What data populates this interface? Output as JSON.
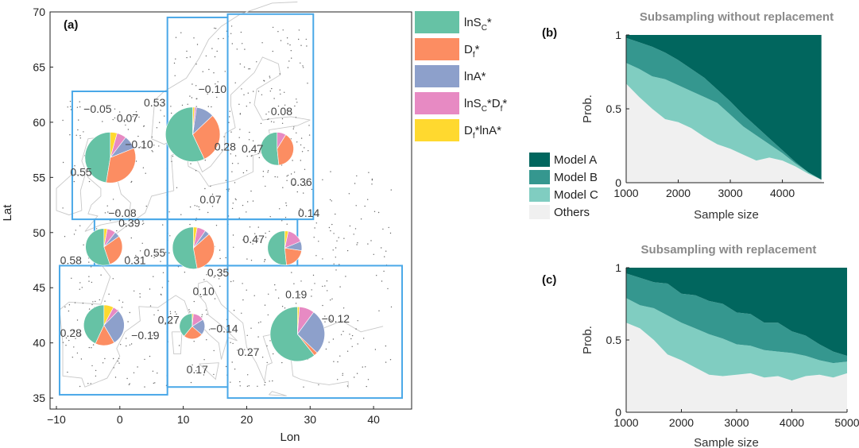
{
  "colors": {
    "lnSc": "#66c2a5",
    "Df": "#fc8d62",
    "lnA": "#8da0cb",
    "lnScDf": "#e78ac3",
    "DflnA": "#ffd92f",
    "modelA": "#01665e",
    "modelB": "#35978f",
    "modelC": "#80cdc1",
    "others": "#f0f0f0",
    "box": "#4aa8e8"
  },
  "chart_data": [
    {
      "type": "pie",
      "panel": "(a)",
      "xlabel": "Lon",
      "ylabel": "Lat",
      "xlim": [
        -11,
        46
      ],
      "ylim": [
        34,
        70
      ],
      "xticks": [
        "−10",
        "0",
        "10",
        "20",
        "30",
        "40"
      ],
      "yticks": [
        "35",
        "40",
        "45",
        "50",
        "55",
        "60",
        "65",
        "70"
      ],
      "legend": {
        "placement": "top-right",
        "entries": [
          {
            "key": "lnSc",
            "label": "lnS",
            "sub": "C",
            "rest": "*"
          },
          {
            "key": "Df",
            "label": "D",
            "sub": "f",
            "rest": "*"
          },
          {
            "key": "lnA",
            "label": "lnA*",
            "sub": "",
            "rest": ""
          },
          {
            "key": "lnScDf",
            "label": "lnS",
            "sub": "C",
            "rest": "*D",
            "sub2": "f",
            "rest2": "*"
          },
          {
            "key": "DflnA",
            "label": "D",
            "sub": "f",
            "rest": "*lnA*"
          }
        ]
      },
      "regions": [
        {
          "id": "west-north",
          "lon": [
            -7.5,
            7.5
          ],
          "lat": [
            51.2,
            62.8
          ]
        },
        {
          "id": "scandinavia",
          "lon": [
            7.5,
            17
          ],
          "lat": [
            51.2,
            69.5
          ]
        },
        {
          "id": "baltic",
          "lon": [
            17,
            30.5
          ],
          "lat": [
            51.2,
            69.8
          ]
        },
        {
          "id": "west-central",
          "lon": [
            -4,
            7.5
          ],
          "lat": [
            47,
            51.2
          ]
        },
        {
          "id": "central",
          "lon": [
            7.5,
            17
          ],
          "lat": [
            47,
            51.2
          ]
        },
        {
          "id": "east-central",
          "lon": [
            17,
            28
          ],
          "lat": [
            47,
            51.2
          ]
        },
        {
          "id": "iberia",
          "lon": [
            -9.5,
            7.5
          ],
          "lat": [
            35.3,
            47
          ]
        },
        {
          "id": "italy",
          "lon": [
            7.5,
            17
          ],
          "lat": [
            36,
            47
          ]
        },
        {
          "id": "southeast",
          "lon": [
            17,
            44.5
          ],
          "lat": [
            35,
            47
          ]
        }
      ],
      "pies": [
        {
          "id": "west-north",
          "lon": -1.5,
          "lat": 56.8,
          "r": 4.0,
          "slices": [
            [
              "lnSc",
              0.55
            ],
            [
              "Df",
              0.39
            ],
            [
              "lnA",
              0.1
            ],
            [
              "lnScDf",
              0.07
            ],
            [
              "DflnA",
              0.05
            ]
          ],
          "labels": [
            [
              "0.55",
              -4.4,
              55.5,
              "end"
            ],
            [
              "0.39",
              1.5,
              50.9,
              "middle"
            ],
            [
              "−0.10",
              0.8,
              58.0,
              "start"
            ],
            [
              "0.07",
              -0.5,
              60.4,
              "start"
            ],
            [
              "−0.05",
              -3.5,
              61.2,
              "middle"
            ]
          ]
        },
        {
          "id": "scandinavia",
          "lon": 11.5,
          "lat": 58.9,
          "r": 4.3,
          "slices": [
            [
              "lnSc",
              0.53
            ],
            [
              "Df",
              0.28
            ],
            [
              "lnA",
              0.1
            ],
            [
              "lnScDf",
              0.01
            ],
            [
              "DflnA",
              0.01
            ]
          ],
          "labels": [
            [
              "0.53",
              7.2,
              61.8,
              "end"
            ],
            [
              "0.28",
              16.6,
              57.8,
              "middle"
            ],
            [
              "−0.10",
              14.6,
              63.0,
              "middle"
            ]
          ]
        },
        {
          "id": "baltic",
          "lon": 24.8,
          "lat": 57.6,
          "r": 2.6,
          "slices": [
            [
              "lnSc",
              0.47
            ],
            [
              "Df",
              0.36
            ],
            [
              "lnA",
              0.0
            ],
            [
              "lnScDf",
              0.08
            ],
            [
              "DflnA",
              0.0
            ]
          ],
          "labels": [
            [
              "0.47",
              20.9,
              57.6,
              "middle"
            ],
            [
              "0.36",
              28.6,
              54.6,
              "middle"
            ],
            [
              "0.08",
              25.5,
              61.0,
              "middle"
            ]
          ]
        },
        {
          "id": "west-central",
          "lon": -2.5,
          "lat": 48.7,
          "r": 2.9,
          "slices": [
            [
              "lnSc",
              0.58
            ],
            [
              "Df",
              0.31
            ],
            [
              "lnA",
              0.05
            ],
            [
              "lnScDf",
              0.08
            ],
            [
              "DflnA",
              0.03
            ]
          ],
          "labels": [
            [
              "0.58",
              -6.0,
              47.5,
              "end"
            ],
            [
              "0.31",
              2.4,
              47.5,
              "middle"
            ],
            [
              "−0.08",
              0.4,
              51.8,
              "middle"
            ]
          ]
        },
        {
          "id": "central",
          "lon": 11.6,
          "lat": 48.6,
          "r": 3.3,
          "slices": [
            [
              "lnSc",
              0.55
            ],
            [
              "Df",
              0.35
            ],
            [
              "lnA",
              0.04
            ],
            [
              "lnScDf",
              0.07
            ],
            [
              "DflnA",
              0.03
            ]
          ],
          "labels": [
            [
              "0.55",
              7.2,
              48.2,
              "end"
            ],
            [
              "0.35",
              15.5,
              46.4,
              "middle"
            ],
            [
              "0.07",
              14.3,
              53.0,
              "middle"
            ]
          ]
        },
        {
          "id": "east-central",
          "lon": 26.0,
          "lat": 48.6,
          "r": 2.7,
          "slices": [
            [
              "lnSc",
              0.47
            ],
            [
              "Df",
              0.19
            ],
            [
              "lnA",
              0.08
            ],
            [
              "lnScDf",
              0.14
            ],
            [
              "DflnA",
              0.03
            ]
          ],
          "labels": [
            [
              "0.47",
              21.1,
              49.4,
              "middle"
            ],
            [
              "0.19",
              27.8,
              44.4,
              "middle"
            ],
            [
              "0.14",
              29.8,
              51.8,
              "middle"
            ]
          ]
        },
        {
          "id": "iberia",
          "lon": -2.5,
          "lat": 41.6,
          "r": 3.2,
          "slices": [
            [
              "lnSc",
              0.28
            ],
            [
              "Df",
              0.1
            ],
            [
              "lnA",
              0.19
            ],
            [
              "lnScDf",
              0.03
            ],
            [
              "DflnA",
              0.05
            ]
          ],
          "labels": [
            [
              "0.28",
              -6.0,
              40.9,
              "end"
            ],
            [
              "−0.19",
              1.8,
              40.7,
              "start"
            ]
          ]
        },
        {
          "id": "italy",
          "lon": 11.4,
          "lat": 41.5,
          "r": 2.0,
          "slices": [
            [
              "lnSc",
              0.27
            ],
            [
              "Df",
              0.17
            ],
            [
              "lnA",
              0.14
            ],
            [
              "lnScDf",
              0.1
            ],
            [
              "DflnA",
              0.01
            ]
          ],
          "labels": [
            [
              "0.27",
              9.4,
              42.1,
              "end"
            ],
            [
              "0.17",
              12.2,
              37.6,
              "middle"
            ],
            [
              "−0.14",
              14.2,
              41.3,
              "start"
            ],
            [
              "0.10",
              13.2,
              44.7,
              "middle"
            ]
          ]
        },
        {
          "id": "southeast",
          "lon": 28.0,
          "lat": 40.8,
          "r": 4.3,
          "slices": [
            [
              "lnSc",
              0.27
            ],
            [
              "Df",
              0.01
            ],
            [
              "lnA",
              0.12
            ],
            [
              "lnScDf",
              0.04
            ],
            [
              "DflnA",
              0.005
            ]
          ],
          "labels": [
            [
              "0.27",
              22.0,
              39.2,
              "end"
            ],
            [
              "−0.12",
              31.8,
              42.2,
              "start"
            ]
          ]
        }
      ]
    },
    {
      "type": "area",
      "panel": "(b)",
      "title": "Subsampling without replacement",
      "xlabel": "Sample size",
      "ylabel": "Prob.",
      "xlim": [
        1000,
        4800
      ],
      "ylim": [
        0,
        1
      ],
      "xticks": [
        "1000",
        "2000",
        "3000",
        "4000"
      ],
      "yticks": [
        "0",
        "0.5",
        "1"
      ],
      "x": [
        1000,
        1250,
        1500,
        1750,
        2000,
        2250,
        2500,
        2750,
        3000,
        3250,
        3500,
        3750,
        4000,
        4250,
        4500,
        4750
      ],
      "series": [
        {
          "name": "Others",
          "key": "others",
          "cum": [
            0.67,
            0.58,
            0.5,
            0.43,
            0.41,
            0.37,
            0.31,
            0.26,
            0.23,
            0.19,
            0.15,
            0.17,
            0.15,
            0.11,
            0.06,
            0.02
          ]
        },
        {
          "name": "Model C",
          "key": "modelC",
          "cum": [
            0.81,
            0.77,
            0.72,
            0.7,
            0.66,
            0.62,
            0.58,
            0.54,
            0.46,
            0.38,
            0.32,
            0.26,
            0.2,
            0.13,
            0.07,
            0.02
          ]
        },
        {
          "name": "Model B",
          "key": "modelB",
          "cum": [
            0.98,
            0.95,
            0.92,
            0.88,
            0.83,
            0.77,
            0.71,
            0.63,
            0.55,
            0.46,
            0.38,
            0.3,
            0.22,
            0.14,
            0.07,
            0.02
          ]
        },
        {
          "name": "Model A",
          "key": "modelA",
          "cum": [
            1,
            1,
            1,
            1,
            1,
            1,
            1,
            1,
            1,
            1,
            1,
            1,
            1,
            1,
            1,
            1
          ]
        }
      ],
      "legend": {
        "placement": "left",
        "entries": [
          {
            "key": "modelA",
            "label": "Model A"
          },
          {
            "key": "modelB",
            "label": "Model B"
          },
          {
            "key": "modelC",
            "label": "Model C"
          },
          {
            "key": "others",
            "label": "Others"
          }
        ]
      }
    },
    {
      "type": "area",
      "panel": "(c)",
      "title": "Subsampling with replacement",
      "xlabel": "Sample size",
      "ylabel": "Prob.",
      "xlim": [
        1000,
        5000
      ],
      "ylim": [
        0,
        1
      ],
      "xticks": [
        "1000",
        "2000",
        "3000",
        "4000",
        "5000"
      ],
      "yticks": [
        "0",
        "0.5",
        "1"
      ],
      "x": [
        1000,
        1250,
        1500,
        1750,
        2000,
        2250,
        2500,
        2750,
        3000,
        3250,
        3500,
        3750,
        4000,
        4250,
        4500,
        4750,
        5000
      ],
      "series": [
        {
          "name": "Others",
          "key": "others",
          "cum": [
            0.62,
            0.58,
            0.5,
            0.4,
            0.36,
            0.31,
            0.26,
            0.25,
            0.26,
            0.27,
            0.24,
            0.25,
            0.22,
            0.25,
            0.26,
            0.24,
            0.27
          ]
        },
        {
          "name": "Model C",
          "key": "modelC",
          "cum": [
            0.79,
            0.74,
            0.72,
            0.67,
            0.62,
            0.58,
            0.54,
            0.51,
            0.47,
            0.46,
            0.43,
            0.42,
            0.41,
            0.39,
            0.36,
            0.34,
            0.35
          ]
        },
        {
          "name": "Model B",
          "key": "modelB",
          "cum": [
            0.96,
            0.93,
            0.9,
            0.89,
            0.82,
            0.81,
            0.77,
            0.75,
            0.69,
            0.68,
            0.62,
            0.62,
            0.56,
            0.53,
            0.47,
            0.42,
            0.39
          ]
        },
        {
          "name": "Model A",
          "key": "modelA",
          "cum": [
            1,
            1,
            1,
            1,
            1,
            1,
            1,
            1,
            1,
            1,
            1,
            1,
            1,
            1,
            1,
            1,
            1
          ]
        }
      ]
    }
  ]
}
